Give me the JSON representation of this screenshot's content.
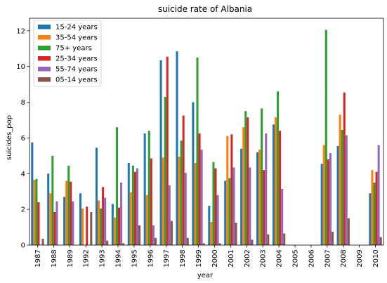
{
  "chart_data": {
    "type": "bar",
    "title": "suicide rate of Albania",
    "xlabel": "year",
    "ylabel": "suicides_pop",
    "ylim": [
      0,
      12.7
    ],
    "yticks": [
      0,
      2,
      4,
      6,
      8,
      10,
      12
    ],
    "grid": false,
    "legend_position": "top-left",
    "categories": [
      "1987",
      "1988",
      "1989",
      "1992",
      "1993",
      "1994",
      "1995",
      "1996",
      "1997",
      "1998",
      "1999",
      "2000",
      "2001",
      "2002",
      "2003",
      "2004",
      "2005",
      "2006",
      "2007",
      "2008",
      "2009",
      "2010"
    ],
    "series": [
      {
        "name": "15-24 years",
        "color": "#1f77b4",
        "values": [
          5.75,
          4.0,
          2.7,
          2.9,
          5.45,
          2.3,
          4.6,
          6.25,
          10.35,
          10.85,
          8.0,
          2.2,
          3.6,
          5.4,
          5.2,
          6.75,
          0,
          0,
          4.55,
          5.55,
          0,
          2.9
        ]
      },
      {
        "name": "35-54 years",
        "color": "#ff7f0e",
        "values": [
          3.65,
          2.9,
          3.6,
          2.05,
          2.5,
          1.55,
          2.95,
          2.8,
          4.9,
          4.95,
          4.6,
          1.3,
          6.1,
          6.6,
          5.35,
          7.15,
          0,
          0,
          5.6,
          7.3,
          0,
          4.2
        ]
      },
      {
        "name": "75+ years",
        "color": "#2ca02c",
        "values": [
          3.7,
          5.0,
          4.45,
          0,
          2.05,
          6.6,
          4.45,
          6.4,
          8.3,
          5.85,
          10.5,
          4.65,
          3.75,
          7.5,
          7.65,
          8.6,
          0,
          0,
          12.05,
          6.45,
          0,
          3.5
        ]
      },
      {
        "name": "25-34 years",
        "color": "#d62728",
        "values": [
          2.4,
          1.85,
          3.55,
          2.15,
          3.25,
          2.1,
          4.1,
          4.85,
          10.55,
          7.25,
          6.25,
          4.3,
          6.2,
          7.15,
          4.2,
          6.4,
          0,
          0,
          4.8,
          8.55,
          0,
          4.1
        ]
      },
      {
        "name": "55-74 years",
        "color": "#9467bd",
        "values": [
          0,
          2.45,
          2.45,
          0,
          2.65,
          3.5,
          4.3,
          1.1,
          3.35,
          4.05,
          5.35,
          2.8,
          4.35,
          4.35,
          6.25,
          3.15,
          0,
          0,
          5.15,
          6.15,
          0,
          5.6
        ]
      },
      {
        "name": "05-14 years",
        "color": "#8c564b",
        "values": [
          0.35,
          0,
          0,
          1.85,
          0.25,
          0.1,
          1.1,
          0.4,
          1.35,
          0.4,
          0.1,
          0.1,
          1.25,
          0.3,
          0.6,
          0.65,
          0,
          0,
          0.75,
          1.5,
          0,
          0.45
        ]
      }
    ]
  }
}
